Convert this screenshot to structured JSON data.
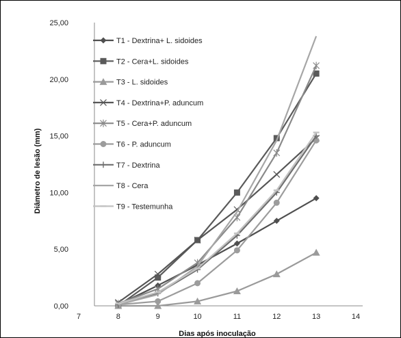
{
  "chart_data": {
    "type": "line",
    "title": "",
    "xlabel": "Dias após inoculação",
    "ylabel": "Diâmetro de lesão (mm)",
    "xlim": [
      7,
      14
    ],
    "ylim": [
      0,
      25
    ],
    "x_ticks": [
      "7",
      "8",
      "9",
      "10",
      "11",
      "12",
      "13",
      "14"
    ],
    "y_ticks": [
      "0,00",
      "5,00",
      "10,00",
      "15,00",
      "20,00",
      "25,00"
    ],
    "grid": false,
    "legend_position": "top-left",
    "x": [
      8,
      9,
      10,
      11,
      12,
      13
    ],
    "series": [
      {
        "name": "T1 - Dextrina+ L. sidoides",
        "values": [
          0.1,
          1.8,
          3.6,
          5.5,
          7.5,
          9.5
        ],
        "color": "#4f4f4f",
        "marker": "diamond"
      },
      {
        "name": "T2 - Cera+L. sidoides",
        "values": [
          0.0,
          2.5,
          5.8,
          10.0,
          14.8,
          20.5
        ],
        "color": "#5a5a5a",
        "marker": "square"
      },
      {
        "name": "T3 - L. sidoides",
        "values": [
          0.0,
          0.0,
          0.4,
          1.3,
          2.8,
          4.7
        ],
        "color": "#9a9a9a",
        "marker": "triangle"
      },
      {
        "name": "T4 - Dextrina+P. aduncum",
        "values": [
          0.3,
          2.8,
          5.8,
          8.5,
          11.6,
          14.8
        ],
        "color": "#555555",
        "marker": "x"
      },
      {
        "name": "T5 - Cera+P. aduncum",
        "values": [
          0.2,
          1.5,
          3.8,
          7.8,
          13.5,
          21.2
        ],
        "color": "#8a8a8a",
        "marker": "star"
      },
      {
        "name": "T6 - P. aduncum",
        "values": [
          0.1,
          0.4,
          2.0,
          4.9,
          9.1,
          14.6
        ],
        "color": "#9c9c9c",
        "marker": "circle"
      },
      {
        "name": "T7 - Dextrina",
        "values": [
          0.1,
          1.1,
          3.2,
          6.2,
          10.0,
          15.0
        ],
        "color": "#6e6e6e",
        "marker": "plus"
      },
      {
        "name": "T8 - Cera",
        "values": [
          0.1,
          1.0,
          3.5,
          8.3,
          14.6,
          23.8
        ],
        "color": "#a6a6a6",
        "marker": "none"
      },
      {
        "name": "T9 - Testemunha",
        "values": [
          0.2,
          1.2,
          3.3,
          6.4,
          10.2,
          15.3
        ],
        "color": "#c2c2c2",
        "marker": "dash"
      }
    ]
  }
}
